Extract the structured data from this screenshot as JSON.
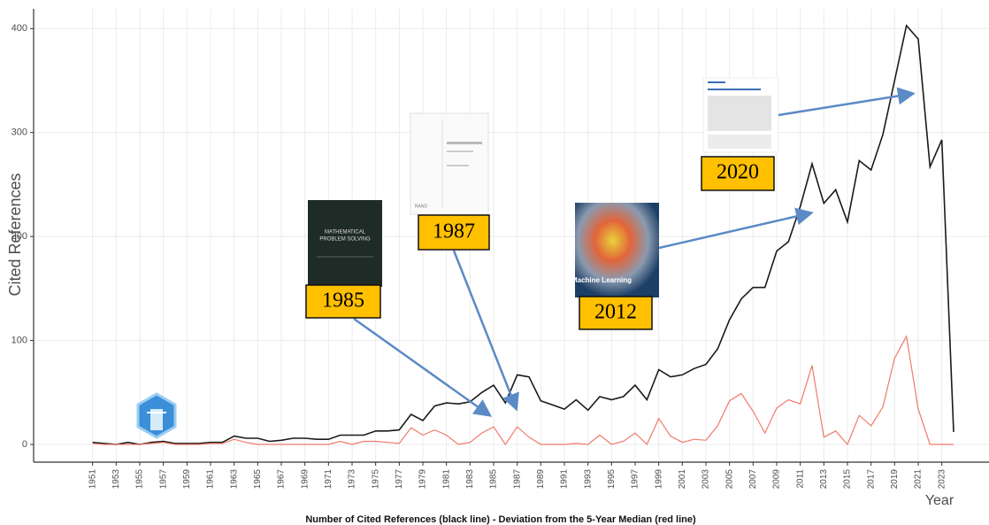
{
  "chart_data": {
    "type": "line",
    "ylabel": "Cited References",
    "xlabel": "Year",
    "caption": "Number of Cited References (black line) - Deviation from the 5-Year Median (red line)",
    "annotations": [
      "1985",
      "1987",
      "2012",
      "2020"
    ],
    "book_texts": [
      "MATHEMATICAL",
      "PROBLEM SOLVING",
      "RAND",
      "Machine Learning"
    ],
    "x": [
      1951,
      1952,
      1953,
      1954,
      1955,
      1956,
      1957,
      1958,
      1959,
      1960,
      1961,
      1962,
      1963,
      1964,
      1965,
      1966,
      1967,
      1968,
      1969,
      1970,
      1971,
      1972,
      1973,
      1974,
      1975,
      1976,
      1977,
      1978,
      1979,
      1980,
      1981,
      1982,
      1983,
      1984,
      1985,
      1986,
      1987,
      1988,
      1989,
      1990,
      1991,
      1992,
      1993,
      1994,
      1995,
      1996,
      1997,
      1998,
      1999,
      2000,
      2001,
      2002,
      2003,
      2004,
      2005,
      2006,
      2007,
      2008,
      2009,
      2010,
      2011,
      2012,
      2013,
      2014,
      2015,
      2016,
      2017,
      2018,
      2019,
      2020,
      2021,
      2022,
      2023,
      2024
    ],
    "series": [
      {
        "color": "#1a1a1a",
        "values": [
          2,
          1,
          0,
          2,
          0,
          2,
          3,
          1,
          1,
          1,
          2,
          2,
          8,
          6,
          6,
          3,
          4,
          6,
          6,
          5,
          5,
          9,
          9,
          9,
          13,
          13,
          14,
          29,
          23,
          37,
          40,
          39,
          41,
          50,
          57,
          40,
          67,
          65,
          42,
          38,
          34,
          43,
          33,
          46,
          43,
          46,
          57,
          43,
          72,
          65,
          67,
          73,
          77,
          92,
          120,
          140,
          151,
          151,
          186,
          195,
          229,
          270,
          232,
          245,
          214,
          273,
          264,
          298,
          350,
          403,
          390,
          267,
          293,
          12
        ]
      },
      {
        "color": "#f07a6a",
        "values": [
          1,
          0,
          0,
          0,
          0,
          1,
          2,
          0,
          0,
          0,
          1,
          1,
          5,
          2,
          0,
          0,
          0,
          0,
          0,
          0,
          0,
          3,
          0,
          3,
          3,
          2,
          1,
          16,
          9,
          14,
          9,
          0,
          2,
          11,
          17,
          0,
          17,
          7,
          0,
          0,
          0,
          1,
          0,
          9,
          0,
          3,
          11,
          0,
          25,
          8,
          2,
          5,
          4,
          18,
          42,
          49,
          32,
          11,
          35,
          43,
          39,
          76,
          7,
          13,
          0,
          28,
          18,
          36,
          83,
          104,
          34,
          0,
          0,
          0
        ]
      }
    ],
    "xlim": [
      1946,
      2027
    ],
    "ylim": [
      -17,
      419
    ],
    "xticks": [
      1951,
      1953,
      1955,
      1957,
      1959,
      1961,
      1963,
      1965,
      1967,
      1969,
      1971,
      1973,
      1975,
      1977,
      1979,
      1981,
      1983,
      1985,
      1987,
      1989,
      1991,
      1993,
      1995,
      1997,
      1999,
      2001,
      2003,
      2005,
      2007,
      2009,
      2011,
      2013,
      2015,
      2017,
      2019,
      2021,
      2023
    ],
    "yticks": [
      0,
      100,
      200,
      300,
      400
    ],
    "grid": true
  }
}
